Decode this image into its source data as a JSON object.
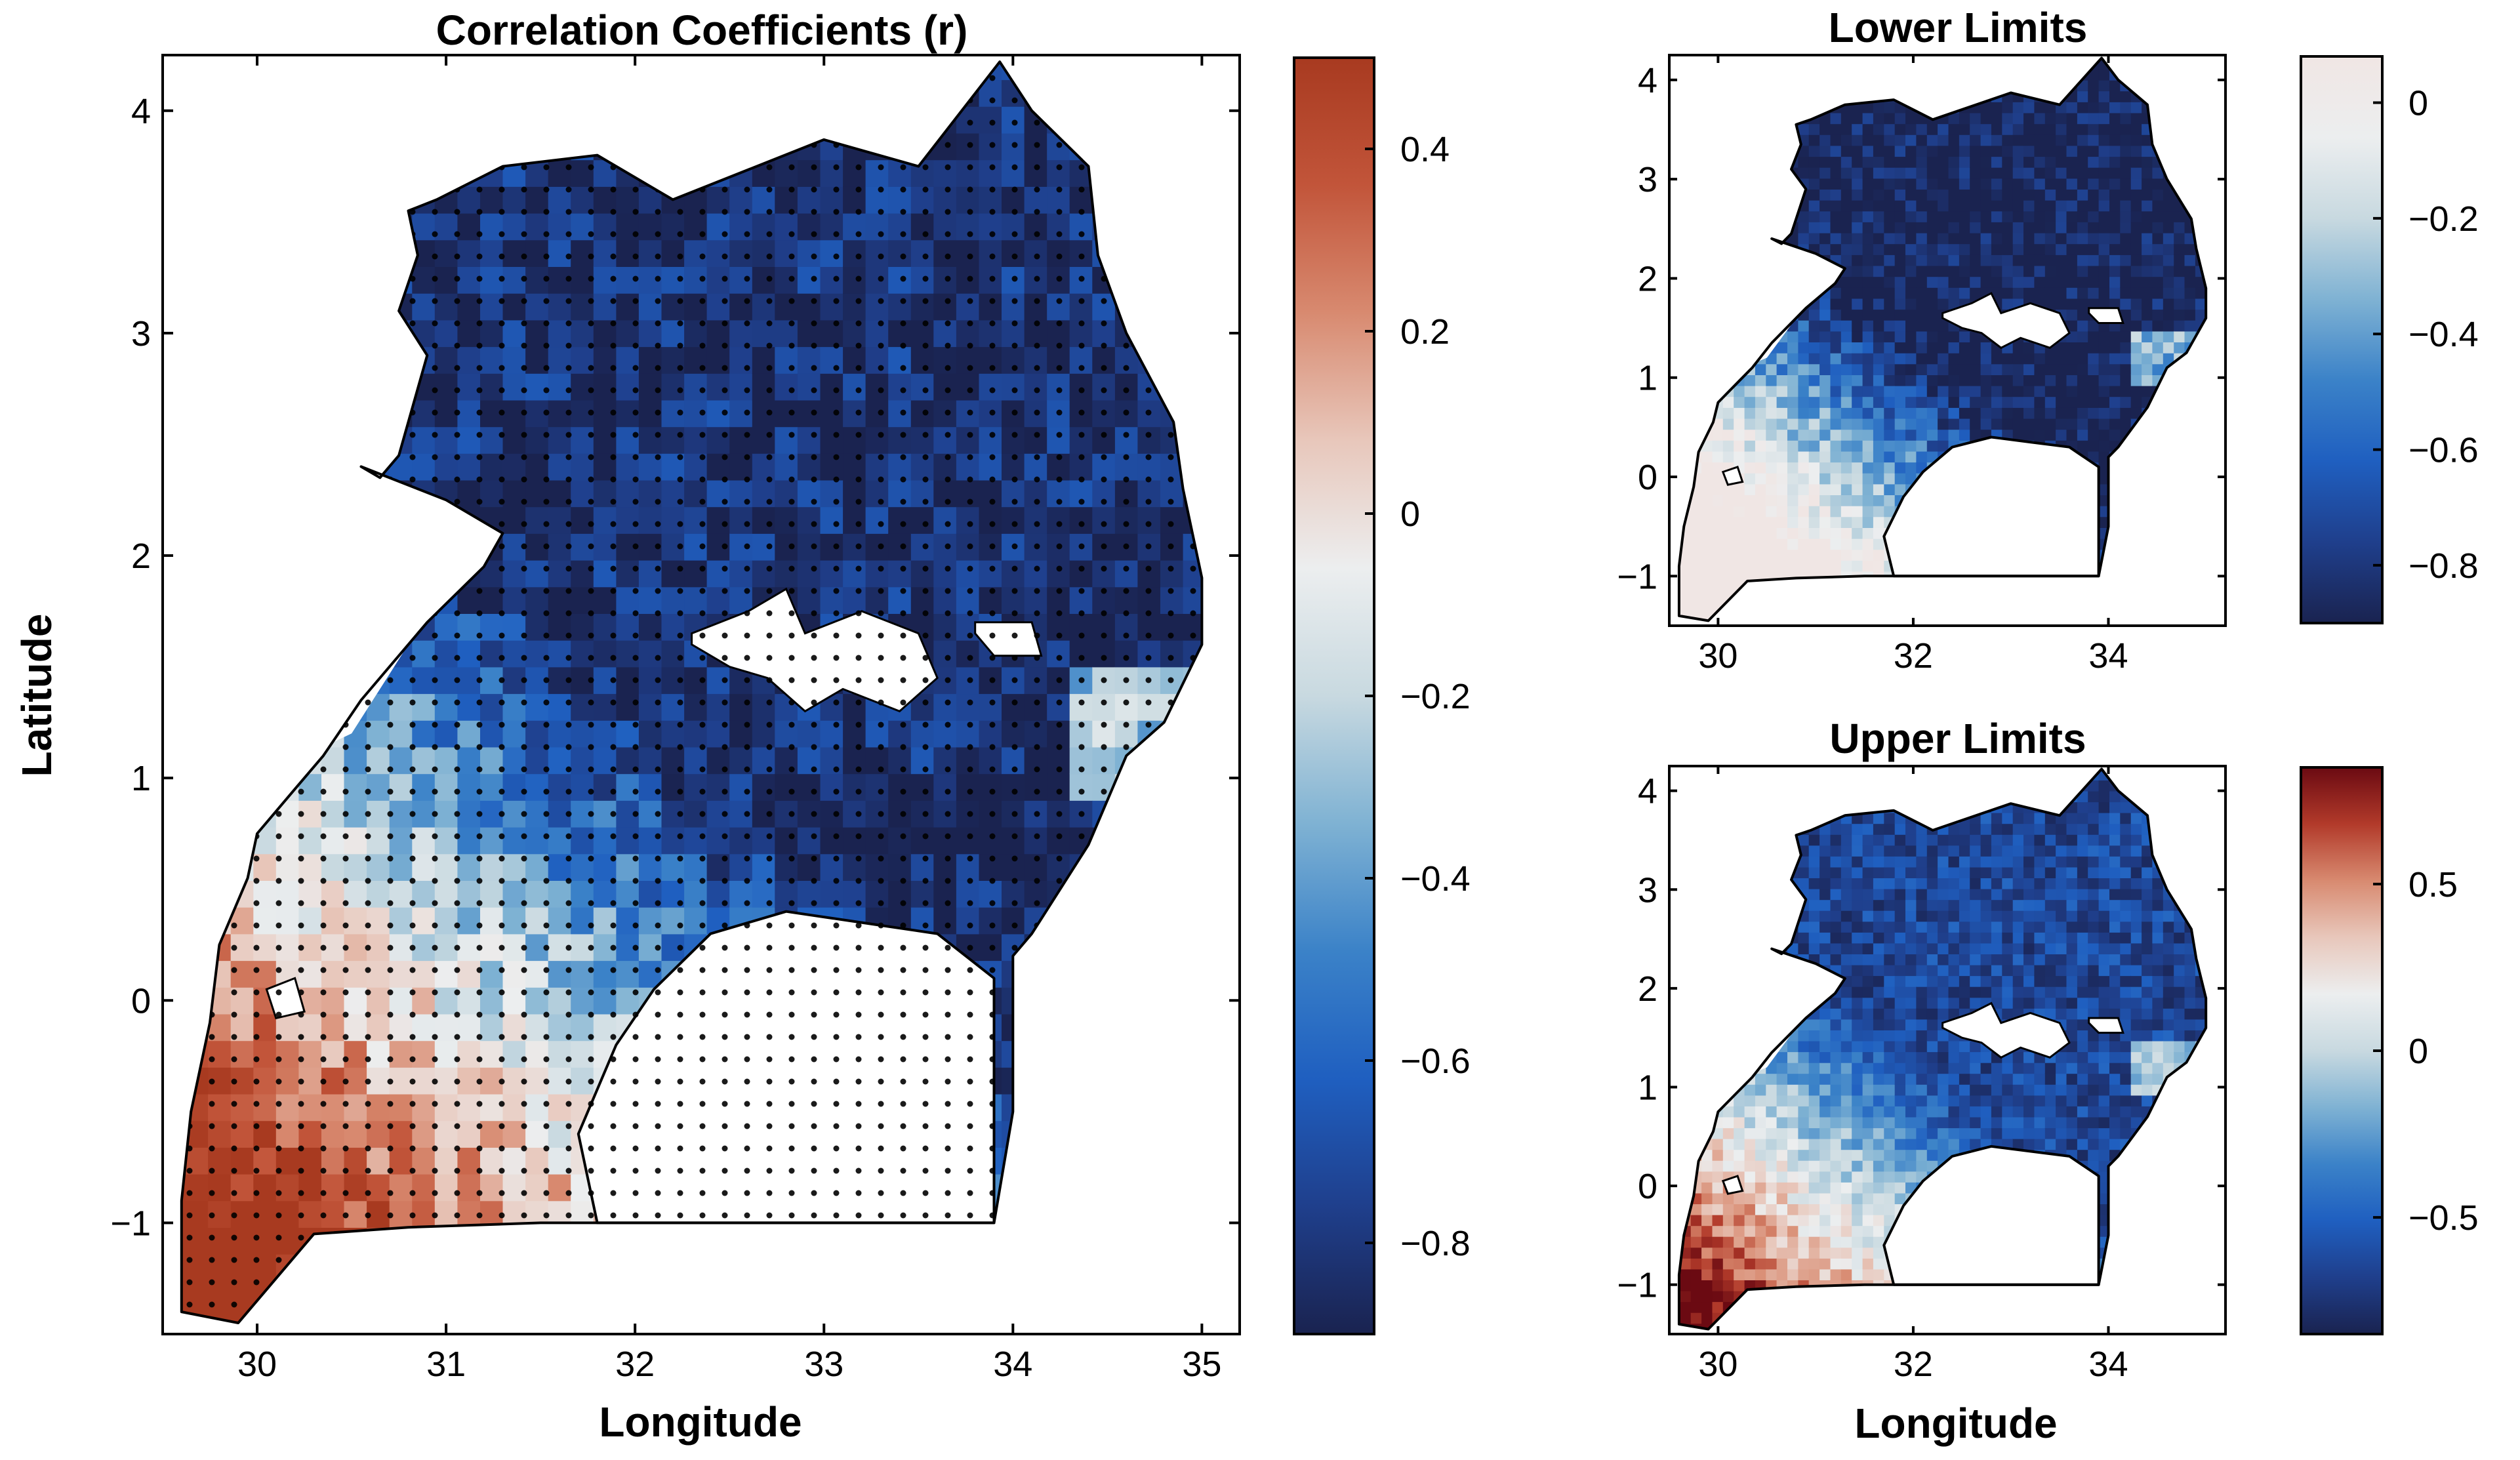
{
  "chart_data": [
    {
      "type": "heatmap",
      "name": "main",
      "title": "Correlation Coefficients (r)",
      "xlabel": "Longitude",
      "ylabel": "Latitude",
      "xlim": [
        29.5,
        35.2
      ],
      "ylim": [
        -1.5,
        4.25
      ],
      "xticks": [
        30,
        31,
        32,
        33,
        34,
        35
      ],
      "yticks": [
        -1,
        0,
        1,
        2,
        3,
        4
      ],
      "colorbar": {
        "range": [
          -0.9,
          0.5
        ],
        "ticks": [
          0.4,
          0.2,
          0,
          -0.2,
          -0.4,
          -0.6,
          -0.8
        ],
        "tick_labels": [
          "0.4",
          "0.2",
          "0",
          "−0.2",
          "−0.4",
          "−0.6",
          "−0.8"
        ]
      },
      "stippling": "significance dots over most of the domain",
      "ytick_labels": [
        "−1",
        "0",
        "1",
        "2",
        "3",
        "4"
      ]
    },
    {
      "type": "heatmap",
      "name": "lower",
      "title": "Lower Limits",
      "xlabel": "",
      "ylabel": "",
      "xlim": [
        29.5,
        35.2
      ],
      "ylim": [
        -1.5,
        4.25
      ],
      "xticks": [
        30,
        32,
        34
      ],
      "yticks": [
        -1,
        0,
        1,
        2,
        3,
        4
      ],
      "colorbar": {
        "range": [
          -0.9,
          0.08
        ],
        "ticks": [
          0,
          -0.2,
          -0.4,
          -0.6,
          -0.8
        ],
        "tick_labels": [
          "0",
          "−0.2",
          "−0.4",
          "−0.6",
          "−0.8"
        ]
      },
      "ytick_labels": [
        "−1",
        "0",
        "1",
        "2",
        "3",
        "4"
      ]
    },
    {
      "type": "heatmap",
      "name": "upper",
      "title": "Upper Limits",
      "xlabel": "Longitude",
      "ylabel": "",
      "xlim": [
        29.5,
        35.2
      ],
      "ylim": [
        -1.5,
        4.25
      ],
      "xticks": [
        30,
        32,
        34
      ],
      "yticks": [
        -1,
        0,
        1,
        2,
        3,
        4
      ],
      "colorbar": {
        "range": [
          -0.85,
          0.85
        ],
        "ticks": [
          0.5,
          0,
          -0.5
        ],
        "tick_labels": [
          "0.5",
          "0",
          "−0.5"
        ]
      },
      "ytick_labels": [
        "−1",
        "0",
        "1",
        "2",
        "3",
        "4"
      ]
    }
  ],
  "colormaps": {
    "diverging_main": [
      "#1a2350",
      "#1f3f8c",
      "#1f5fc0",
      "#3b82c8",
      "#7fb2d3",
      "#c8d9e0",
      "#eceeef",
      "#e8c7bb",
      "#d88a70",
      "#c2553a",
      "#a83a20"
    ],
    "diverging_lower": [
      "#1a2350",
      "#1f3f8c",
      "#1f5fc0",
      "#3b82c8",
      "#7fb2d3",
      "#c8d9e0",
      "#eceeef",
      "#f0e6e4"
    ],
    "diverging_upper": [
      "#1a2350",
      "#1f3f8c",
      "#1f5fc0",
      "#3b82c8",
      "#7fb2d3",
      "#c8d9e0",
      "#eceeef",
      "#e8c7bb",
      "#d88a70",
      "#b23a2a",
      "#6b0a12"
    ]
  }
}
